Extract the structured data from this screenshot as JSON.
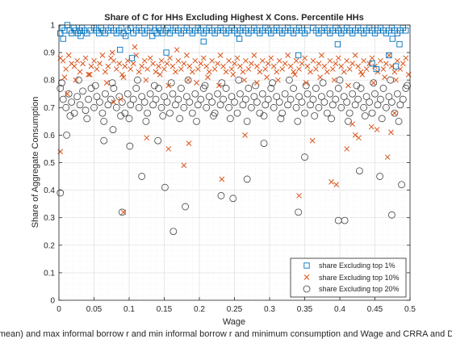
{
  "chart_data": {
    "type": "scatter",
    "title": "Share of C for HHs Excluding Highest X Cons. Percentile HHs",
    "xlabel": "Wage",
    "ylabel": "Share of Aggregate Consumption",
    "caption": "mean) and max informal borrow r and min informal borrow r and minimum consumption and Wage and CRRA and D",
    "xlim": [
      0,
      0.5
    ],
    "ylim": [
      0,
      1
    ],
    "x_ticks": [
      "0",
      "0.05",
      "0.1",
      "0.15",
      "0.2",
      "0.25",
      "0.3",
      "0.35",
      "0.4",
      "0.45",
      "0.5"
    ],
    "y_ticks": [
      "0",
      "0.1",
      "0.2",
      "0.3",
      "0.4",
      "0.5",
      "0.6",
      "0.7",
      "0.8",
      "0.9",
      "1"
    ],
    "x_tick_values": [
      0,
      0.05,
      0.1,
      0.15,
      0.2,
      0.25,
      0.3,
      0.35,
      0.4,
      0.45,
      0.5
    ],
    "y_tick_values": [
      0,
      0.1,
      0.2,
      0.3,
      0.4,
      0.5,
      0.6,
      0.7,
      0.8,
      0.9,
      1.0
    ],
    "grid": true,
    "minor_grid": true,
    "legend_position": "bottom-right",
    "series": [
      {
        "name": "share Excluding top 1%",
        "marker": "square",
        "color": "#0072BD",
        "x": [
          0.002,
          0.005,
          0.008,
          0.012,
          0.015,
          0.018,
          0.021,
          0.024,
          0.027,
          0.03,
          0.033,
          0.036,
          0.04,
          0.045,
          0.05,
          0.054,
          0.057,
          0.06,
          0.063,
          0.066,
          0.07,
          0.074,
          0.078,
          0.082,
          0.086,
          0.089,
          0.092,
          0.095,
          0.098,
          0.102,
          0.106,
          0.11,
          0.114,
          0.118,
          0.122,
          0.126,
          0.13,
          0.133,
          0.136,
          0.139,
          0.142,
          0.145,
          0.148,
          0.152,
          0.155,
          0.158,
          0.162,
          0.166,
          0.17,
          0.174,
          0.178,
          0.182,
          0.186,
          0.19,
          0.194,
          0.198,
          0.202,
          0.206,
          0.21,
          0.214,
          0.218,
          0.222,
          0.226,
          0.23,
          0.234,
          0.238,
          0.242,
          0.246,
          0.25,
          0.254,
          0.258,
          0.262,
          0.266,
          0.27,
          0.274,
          0.278,
          0.282,
          0.286,
          0.29,
          0.294,
          0.298,
          0.302,
          0.306,
          0.31,
          0.314,
          0.318,
          0.322,
          0.326,
          0.33,
          0.334,
          0.338,
          0.342,
          0.346,
          0.35,
          0.354,
          0.362,
          0.366,
          0.37,
          0.374,
          0.378,
          0.382,
          0.386,
          0.39,
          0.394,
          0.398,
          0.402,
          0.406,
          0.41,
          0.414,
          0.418,
          0.422,
          0.426,
          0.43,
          0.434,
          0.438,
          0.442,
          0.446,
          0.45,
          0.454,
          0.458,
          0.462,
          0.466,
          0.47,
          0.474,
          0.478,
          0.482,
          0.486,
          0.49,
          0.494,
          0.006,
          0.031,
          0.087,
          0.104,
          0.153,
          0.206,
          0.257,
          0.341,
          0.397,
          0.446,
          0.47,
          0.475,
          0.48,
          0.485,
          0.452
        ],
        "y": [
          0.97,
          0.99,
          0.98,
          1.0,
          0.98,
          0.97,
          0.99,
          0.98,
          0.97,
          0.98,
          0.99,
          0.98,
          0.97,
          0.98,
          0.99,
          0.98,
          0.97,
          0.99,
          0.98,
          0.97,
          0.98,
          0.99,
          0.98,
          0.97,
          0.98,
          0.99,
          0.97,
          0.96,
          0.98,
          0.99,
          0.97,
          0.98,
          0.99,
          0.98,
          0.97,
          0.98,
          0.99,
          0.96,
          0.98,
          0.97,
          0.99,
          0.98,
          0.97,
          0.98,
          0.99,
          0.97,
          0.98,
          0.99,
          0.98,
          0.97,
          0.98,
          0.99,
          0.98,
          0.97,
          0.98,
          0.99,
          0.98,
          0.97,
          0.98,
          0.99,
          0.98,
          0.97,
          0.98,
          0.99,
          0.98,
          0.97,
          0.98,
          0.99,
          0.98,
          0.97,
          0.98,
          0.99,
          0.98,
          0.97,
          0.98,
          0.99,
          0.98,
          0.97,
          0.98,
          0.99,
          0.98,
          0.97,
          0.98,
          0.99,
          0.98,
          0.97,
          0.98,
          0.99,
          0.98,
          0.97,
          0.98,
          0.99,
          0.98,
          0.97,
          0.98,
          0.99,
          0.98,
          0.97,
          0.98,
          0.99,
          0.98,
          0.97,
          0.98,
          0.99,
          0.98,
          0.97,
          0.98,
          0.99,
          0.98,
          0.97,
          0.98,
          0.99,
          0.98,
          0.97,
          0.98,
          0.99,
          0.98,
          0.97,
          0.98,
          0.99,
          0.98,
          0.97,
          0.98,
          0.99,
          0.98,
          0.97,
          0.98,
          0.99,
          0.98,
          0.95,
          0.96,
          0.91,
          0.88,
          0.9,
          0.94,
          0.95,
          0.89,
          0.93,
          0.86,
          0.89,
          0.95,
          0.85,
          0.93,
          0.84
        ]
      },
      {
        "name": "share Excluding top 10%",
        "marker": "x",
        "color": "#D95319",
        "x": [
          0.002,
          0.006,
          0.01,
          0.014,
          0.018,
          0.022,
          0.026,
          0.03,
          0.034,
          0.038,
          0.042,
          0.046,
          0.05,
          0.054,
          0.058,
          0.062,
          0.066,
          0.07,
          0.074,
          0.078,
          0.082,
          0.086,
          0.09,
          0.094,
          0.098,
          0.102,
          0.106,
          0.11,
          0.114,
          0.118,
          0.122,
          0.126,
          0.13,
          0.134,
          0.138,
          0.142,
          0.146,
          0.15,
          0.154,
          0.158,
          0.162,
          0.166,
          0.17,
          0.174,
          0.178,
          0.182,
          0.186,
          0.19,
          0.194,
          0.198,
          0.202,
          0.206,
          0.21,
          0.214,
          0.218,
          0.222,
          0.226,
          0.23,
          0.234,
          0.238,
          0.242,
          0.246,
          0.25,
          0.254,
          0.258,
          0.262,
          0.266,
          0.27,
          0.274,
          0.278,
          0.282,
          0.286,
          0.29,
          0.294,
          0.298,
          0.302,
          0.306,
          0.31,
          0.314,
          0.318,
          0.322,
          0.326,
          0.33,
          0.334,
          0.338,
          0.342,
          0.346,
          0.35,
          0.354,
          0.358,
          0.362,
          0.366,
          0.37,
          0.374,
          0.378,
          0.382,
          0.386,
          0.39,
          0.394,
          0.398,
          0.402,
          0.406,
          0.41,
          0.414,
          0.418,
          0.422,
          0.426,
          0.43,
          0.434,
          0.438,
          0.442,
          0.446,
          0.45,
          0.454,
          0.458,
          0.462,
          0.466,
          0.47,
          0.474,
          0.478,
          0.482,
          0.486,
          0.49,
          0.494,
          0.008,
          0.024,
          0.044,
          0.068,
          0.076,
          0.092,
          0.108,
          0.124,
          0.144,
          0.156,
          0.168,
          0.184,
          0.196,
          0.212,
          0.228,
          0.248,
          0.264,
          0.282,
          0.296,
          0.312,
          0.336,
          0.352,
          0.372,
          0.392,
          0.412,
          0.432,
          0.448,
          0.464,
          0.48,
          0.498,
          0.002,
          0.012,
          0.078,
          0.088,
          0.092,
          0.125,
          0.156,
          0.178,
          0.185,
          0.232,
          0.265,
          0.342,
          0.361,
          0.388,
          0.395,
          0.41,
          0.418,
          0.422,
          0.427,
          0.445,
          0.453,
          0.468,
          0.473,
          0.478
        ],
        "y": [
          0.88,
          0.87,
          0.84,
          0.89,
          0.86,
          0.85,
          0.87,
          0.83,
          0.86,
          0.88,
          0.82,
          0.85,
          0.87,
          0.84,
          0.86,
          0.89,
          0.83,
          0.85,
          0.88,
          0.87,
          0.84,
          0.86,
          0.82,
          0.85,
          0.87,
          0.84,
          0.86,
          0.89,
          0.83,
          0.85,
          0.87,
          0.84,
          0.88,
          0.86,
          0.83,
          0.85,
          0.87,
          0.84,
          0.86,
          0.88,
          0.85,
          0.83,
          0.87,
          0.84,
          0.86,
          0.89,
          0.85,
          0.83,
          0.87,
          0.84,
          0.86,
          0.88,
          0.85,
          0.83,
          0.87,
          0.84,
          0.86,
          0.89,
          0.85,
          0.83,
          0.87,
          0.84,
          0.86,
          0.88,
          0.85,
          0.83,
          0.87,
          0.84,
          0.86,
          0.89,
          0.85,
          0.83,
          0.87,
          0.84,
          0.86,
          0.88,
          0.85,
          0.83,
          0.87,
          0.84,
          0.86,
          0.89,
          0.85,
          0.83,
          0.87,
          0.84,
          0.86,
          0.88,
          0.85,
          0.83,
          0.87,
          0.84,
          0.86,
          0.89,
          0.85,
          0.83,
          0.87,
          0.84,
          0.86,
          0.88,
          0.85,
          0.83,
          0.87,
          0.84,
          0.86,
          0.89,
          0.85,
          0.83,
          0.87,
          0.84,
          0.86,
          0.88,
          0.85,
          0.83,
          0.87,
          0.84,
          0.86,
          0.89,
          0.85,
          0.83,
          0.87,
          0.84,
          0.86,
          0.88,
          0.81,
          0.8,
          0.82,
          0.79,
          0.9,
          0.81,
          0.92,
          0.8,
          0.82,
          0.78,
          0.91,
          0.8,
          0.79,
          0.81,
          0.78,
          0.82,
          0.8,
          0.79,
          0.81,
          0.8,
          0.82,
          0.79,
          0.81,
          0.8,
          0.78,
          0.82,
          0.79,
          0.81,
          0.8,
          0.82,
          0.54,
          0.75,
          0.72,
          0.73,
          0.32,
          0.59,
          0.55,
          0.49,
          0.57,
          0.44,
          0.6,
          0.38,
          0.58,
          0.43,
          0.42,
          0.55,
          0.64,
          0.6,
          0.59,
          0.63,
          0.62,
          0.52,
          0.61,
          0.68
        ]
      },
      {
        "name": "share Excluding top 20%",
        "marker": "circle",
        "color": "#404040",
        "x": [
          0.002,
          0.006,
          0.01,
          0.014,
          0.018,
          0.022,
          0.026,
          0.03,
          0.034,
          0.038,
          0.042,
          0.046,
          0.05,
          0.054,
          0.058,
          0.062,
          0.066,
          0.07,
          0.074,
          0.078,
          0.082,
          0.086,
          0.09,
          0.094,
          0.098,
          0.102,
          0.106,
          0.11,
          0.114,
          0.118,
          0.122,
          0.126,
          0.13,
          0.134,
          0.138,
          0.142,
          0.146,
          0.15,
          0.154,
          0.158,
          0.162,
          0.166,
          0.17,
          0.174,
          0.178,
          0.182,
          0.186,
          0.19,
          0.194,
          0.198,
          0.202,
          0.206,
          0.21,
          0.214,
          0.218,
          0.222,
          0.226,
          0.23,
          0.234,
          0.238,
          0.242,
          0.246,
          0.25,
          0.254,
          0.258,
          0.262,
          0.266,
          0.27,
          0.274,
          0.278,
          0.282,
          0.286,
          0.29,
          0.294,
          0.298,
          0.302,
          0.306,
          0.31,
          0.314,
          0.318,
          0.322,
          0.326,
          0.33,
          0.334,
          0.338,
          0.342,
          0.346,
          0.35,
          0.354,
          0.358,
          0.362,
          0.366,
          0.37,
          0.374,
          0.378,
          0.382,
          0.386,
          0.39,
          0.394,
          0.398,
          0.402,
          0.406,
          0.41,
          0.414,
          0.418,
          0.422,
          0.426,
          0.43,
          0.434,
          0.438,
          0.442,
          0.446,
          0.45,
          0.454,
          0.458,
          0.462,
          0.466,
          0.47,
          0.474,
          0.478,
          0.482,
          0.486,
          0.49,
          0.494,
          0.004,
          0.016,
          0.028,
          0.04,
          0.052,
          0.064,
          0.076,
          0.088,
          0.1,
          0.112,
          0.124,
          0.136,
          0.148,
          0.16,
          0.172,
          0.184,
          0.196,
          0.208,
          0.22,
          0.232,
          0.244,
          0.256,
          0.268,
          0.28,
          0.292,
          0.304,
          0.316,
          0.328,
          0.34,
          0.352,
          0.364,
          0.376,
          0.388,
          0.4,
          0.412,
          0.424,
          0.436,
          0.448,
          0.46,
          0.472,
          0.484,
          0.496,
          0.002,
          0.011,
          0.064,
          0.077,
          0.09,
          0.101,
          0.118,
          0.141,
          0.151,
          0.163,
          0.18,
          0.231,
          0.248,
          0.268,
          0.292,
          0.341,
          0.35,
          0.398,
          0.407,
          0.428,
          0.457,
          0.474,
          0.488
        ],
        "y": [
          0.77,
          0.73,
          0.7,
          0.75,
          0.72,
          0.68,
          0.74,
          0.71,
          0.76,
          0.69,
          0.73,
          0.77,
          0.7,
          0.74,
          0.72,
          0.68,
          0.75,
          0.71,
          0.73,
          0.77,
          0.7,
          0.74,
          0.72,
          0.68,
          0.75,
          0.71,
          0.73,
          0.77,
          0.7,
          0.74,
          0.72,
          0.68,
          0.75,
          0.71,
          0.73,
          0.77,
          0.7,
          0.74,
          0.72,
          0.68,
          0.75,
          0.71,
          0.73,
          0.77,
          0.7,
          0.74,
          0.72,
          0.68,
          0.75,
          0.71,
          0.73,
          0.77,
          0.7,
          0.74,
          0.72,
          0.68,
          0.75,
          0.71,
          0.73,
          0.77,
          0.7,
          0.74,
          0.72,
          0.68,
          0.75,
          0.71,
          0.73,
          0.77,
          0.7,
          0.74,
          0.72,
          0.68,
          0.75,
          0.71,
          0.73,
          0.77,
          0.7,
          0.74,
          0.72,
          0.68,
          0.75,
          0.71,
          0.73,
          0.77,
          0.7,
          0.74,
          0.72,
          0.68,
          0.75,
          0.71,
          0.73,
          0.77,
          0.7,
          0.74,
          0.72,
          0.68,
          0.75,
          0.71,
          0.73,
          0.77,
          0.7,
          0.74,
          0.72,
          0.68,
          0.75,
          0.71,
          0.73,
          0.77,
          0.7,
          0.74,
          0.72,
          0.68,
          0.75,
          0.71,
          0.73,
          0.77,
          0.7,
          0.74,
          0.72,
          0.68,
          0.75,
          0.71,
          0.73,
          0.77,
          0.79,
          0.67,
          0.8,
          0.66,
          0.78,
          0.65,
          0.79,
          0.67,
          0.66,
          0.8,
          0.65,
          0.78,
          0.67,
          0.79,
          0.66,
          0.8,
          0.65,
          0.78,
          0.67,
          0.79,
          0.66,
          0.8,
          0.65,
          0.78,
          0.67,
          0.79,
          0.66,
          0.8,
          0.65,
          0.78,
          0.67,
          0.79,
          0.66,
          0.8,
          0.65,
          0.78,
          0.67,
          0.79,
          0.66,
          0.8,
          0.65,
          0.78,
          0.39,
          0.6,
          0.58,
          0.62,
          0.32,
          0.56,
          0.45,
          0.58,
          0.41,
          0.25,
          0.34,
          0.38,
          0.37,
          0.44,
          0.57,
          0.32,
          0.52,
          0.29,
          0.29,
          0.47,
          0.45,
          0.31,
          0.42
        ]
      }
    ]
  }
}
